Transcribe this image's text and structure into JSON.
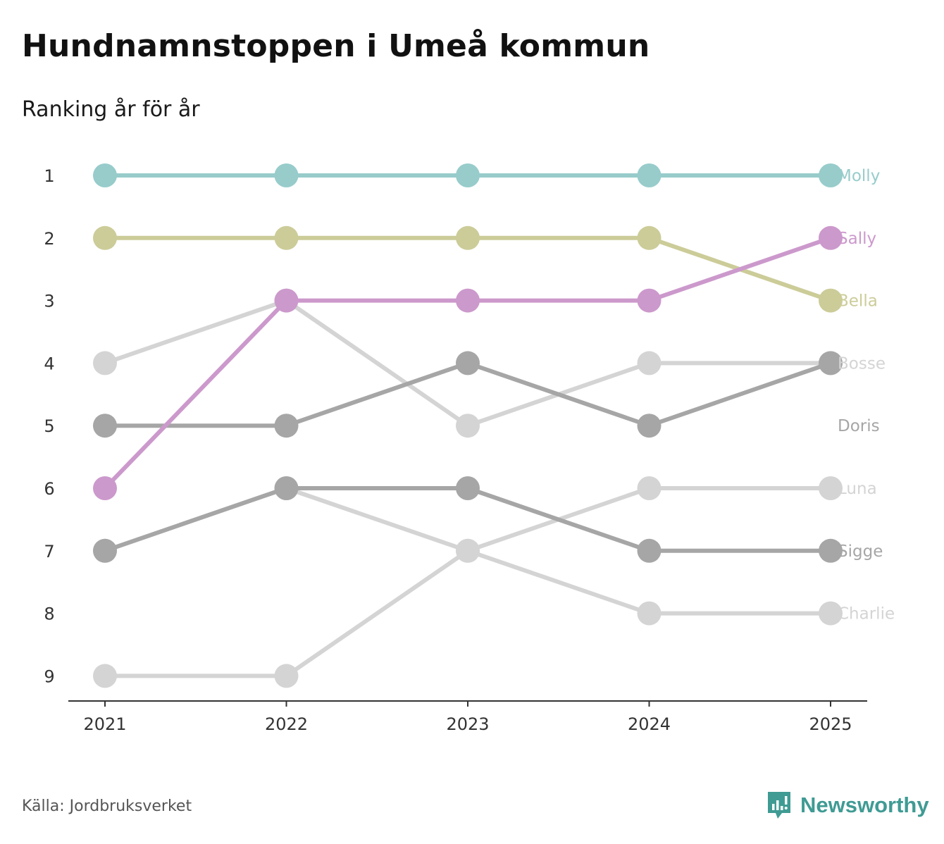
{
  "header": {
    "title": "Hundnamnstoppen i Umeå kommun",
    "subtitle": "Ranking år för år"
  },
  "footer": {
    "source": "Källa: Jordbruksverket",
    "brand": "Newsworthy",
    "brand_icon": "newsworthy-logo-icon"
  },
  "colors": {
    "axis": "#333333",
    "tick_text": "#333333",
    "brand": "#3f9b94"
  },
  "chart_data": {
    "type": "bump",
    "title": "Hundnamnstoppen i Umeå kommun",
    "subtitle": "Ranking år för år",
    "x": [
      "2021",
      "2022",
      "2023",
      "2024",
      "2025"
    ],
    "y_ticks": [
      "1",
      "2",
      "3",
      "4",
      "5",
      "6",
      "7",
      "8",
      "9"
    ],
    "ylim": [
      1,
      9
    ],
    "y_inverted": true,
    "xlabel": "",
    "ylabel": "",
    "series": [
      {
        "name": "Molly",
        "color": "#97cccb",
        "label_color": "#97cccb",
        "ranks": [
          1,
          1,
          1,
          1,
          1
        ]
      },
      {
        "name": "Sally",
        "color": "#cc99cc",
        "label_color": "#cc99cc",
        "ranks": [
          6,
          3,
          3,
          3,
          2
        ]
      },
      {
        "name": "Bella",
        "color": "#cccc99",
        "label_color": "#cccc99",
        "ranks": [
          2,
          2,
          2,
          2,
          3
        ]
      },
      {
        "name": "Bosse",
        "color": "#d4d4d4",
        "label_color": "#d4d4d4",
        "ranks": [
          4,
          3,
          5,
          4,
          4
        ]
      },
      {
        "name": "Doris",
        "color": "#a6a6a6",
        "label_color": "#a6a6a6",
        "ranks": [
          5,
          5,
          4,
          5,
          4
        ]
      },
      {
        "name": "Luna",
        "color": "#d4d4d4",
        "label_color": "#d4d4d4",
        "ranks": [
          9,
          9,
          7,
          6,
          6
        ]
      },
      {
        "name": "Sigge",
        "color": "#a6a6a6",
        "label_color": "#a6a6a6",
        "ranks": [
          7,
          6,
          6,
          7,
          7
        ]
      },
      {
        "name": "Charlie",
        "color": "#d4d4d4",
        "label_color": "#d4d4d4",
        "ranks": [
          7,
          6,
          7,
          8,
          8
        ]
      }
    ],
    "labels": [
      {
        "text": "Molly",
        "rank": 1,
        "series": "Molly"
      },
      {
        "text": "Sally",
        "rank": 2,
        "series": "Sally"
      },
      {
        "text": "Bella",
        "rank": 3,
        "series": "Bella"
      },
      {
        "text": "Bosse",
        "rank": 4,
        "series": "Bosse"
      },
      {
        "text": "Doris",
        "rank": 5,
        "series": "Doris"
      },
      {
        "text": "Luna",
        "rank": 6,
        "series": "Luna"
      },
      {
        "text": "Sigge",
        "rank": 7,
        "series": "Sigge"
      },
      {
        "text": "Charlie",
        "rank": 8,
        "series": "Charlie"
      }
    ]
  }
}
